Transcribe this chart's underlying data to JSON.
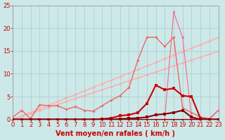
{
  "background_color": "#cce8e8",
  "grid_color": "#aacccc",
  "xlabel": "Vent moyen/en rafales ( km/h )",
  "xlabel_color": "#cc0000",
  "xlabel_fontsize": 7,
  "tick_color": "#cc0000",
  "tick_fontsize": 6,
  "xlim": [
    0,
    23
  ],
  "ylim": [
    0,
    25
  ],
  "yticks": [
    0,
    5,
    10,
    15,
    20,
    25
  ],
  "xticks": [
    0,
    1,
    2,
    3,
    4,
    5,
    6,
    7,
    8,
    9,
    10,
    11,
    12,
    13,
    14,
    15,
    16,
    17,
    18,
    19,
    20,
    21,
    22,
    23
  ],
  "line_diag1": {
    "x": [
      0,
      1,
      2,
      3,
      4,
      5,
      6,
      7,
      8,
      9,
      10,
      11,
      12,
      13,
      14,
      15,
      16,
      17,
      18,
      19,
      20,
      21,
      22,
      23
    ],
    "y": [
      0.0,
      0.65,
      1.3,
      1.95,
      2.6,
      3.25,
      3.9,
      4.55,
      5.2,
      5.85,
      6.5,
      7.15,
      7.8,
      8.45,
      9.1,
      9.75,
      10.4,
      11.05,
      11.7,
      12.35,
      13.0,
      13.65,
      14.3,
      14.95
    ],
    "color": "#ffaaaa",
    "linewidth": 1.0,
    "marker": "D",
    "markersize": 2.0,
    "zorder": 2
  },
  "line_diag2": {
    "x": [
      0,
      1,
      2,
      3,
      4,
      5,
      6,
      7,
      8,
      9,
      10,
      11,
      12,
      13,
      14,
      15,
      16,
      17,
      18,
      19,
      20,
      21,
      22,
      23
    ],
    "y": [
      0.0,
      0.78,
      1.56,
      2.34,
      3.12,
      3.9,
      4.68,
      5.46,
      6.24,
      7.02,
      7.8,
      8.58,
      9.36,
      10.14,
      10.92,
      11.7,
      12.48,
      13.26,
      14.04,
      14.82,
      15.6,
      16.38,
      17.16,
      17.94
    ],
    "color": "#ffaaaa",
    "linewidth": 1.0,
    "marker": "D",
    "markersize": 2.0,
    "zorder": 2
  },
  "line_medpink": {
    "x": [
      0,
      1,
      2,
      3,
      4,
      5,
      6,
      7,
      8,
      9,
      10,
      11,
      12,
      13,
      14,
      15,
      16,
      17,
      18,
      19,
      20,
      21,
      22,
      23
    ],
    "y": [
      0.5,
      2.0,
      0.2,
      3.2,
      3.0,
      3.0,
      2.2,
      2.8,
      2.0,
      1.8,
      3.0,
      4.2,
      5.2,
      7.0,
      13.0,
      18.0,
      18.0,
      16.0,
      18.0,
      2.5,
      1.5,
      0.5,
      0.2,
      2.0
    ],
    "color": "#ee6666",
    "linewidth": 1.0,
    "marker": "D",
    "markersize": 2.0,
    "zorder": 3
  },
  "line_spike": {
    "x": [
      0,
      1,
      2,
      3,
      4,
      5,
      6,
      7,
      8,
      9,
      10,
      11,
      12,
      13,
      14,
      15,
      16,
      17,
      18,
      19,
      20,
      21,
      22,
      23
    ],
    "y": [
      0.0,
      0.0,
      0.0,
      0.0,
      0.0,
      0.0,
      0.0,
      0.0,
      0.0,
      0.0,
      0.0,
      0.0,
      0.0,
      0.0,
      0.0,
      0.0,
      0.0,
      0.0,
      23.5,
      18.0,
      0.2,
      0.0,
      0.0,
      2.0
    ],
    "color": "#ff6688",
    "linewidth": 0.8,
    "marker": "D",
    "markersize": 2.0,
    "zorder": 4
  },
  "line_darkred1": {
    "x": [
      0,
      1,
      2,
      3,
      4,
      5,
      6,
      7,
      8,
      9,
      10,
      11,
      12,
      13,
      14,
      15,
      16,
      17,
      18,
      19,
      20,
      21,
      22,
      23
    ],
    "y": [
      0.0,
      0.0,
      0.0,
      0.0,
      0.0,
      0.0,
      0.0,
      0.0,
      0.0,
      0.0,
      0.1,
      0.3,
      0.8,
      1.0,
      1.5,
      3.5,
      7.5,
      6.5,
      6.8,
      5.2,
      5.0,
      0.2,
      0.0,
      0.0
    ],
    "color": "#cc0000",
    "linewidth": 1.5,
    "marker": "s",
    "markersize": 2.5,
    "zorder": 5
  },
  "line_darkred2": {
    "x": [
      0,
      1,
      2,
      3,
      4,
      5,
      6,
      7,
      8,
      9,
      10,
      11,
      12,
      13,
      14,
      15,
      16,
      17,
      18,
      19,
      20,
      21,
      22,
      23
    ],
    "y": [
      0.0,
      0.0,
      0.0,
      0.0,
      0.0,
      0.0,
      0.0,
      0.0,
      0.0,
      0.0,
      0.0,
      0.0,
      0.1,
      0.2,
      0.3,
      0.5,
      1.0,
      1.2,
      1.5,
      2.0,
      0.5,
      0.0,
      0.0,
      0.0
    ],
    "color": "#880000",
    "linewidth": 1.5,
    "marker": "s",
    "markersize": 2.5,
    "zorder": 6
  },
  "line_zero": {
    "x": [
      0,
      1,
      2,
      3,
      4,
      5,
      6,
      7,
      8,
      9,
      10,
      11,
      12,
      13,
      14,
      15,
      16,
      17,
      18,
      19,
      20,
      21,
      22,
      23
    ],
    "y": [
      0.0,
      0.0,
      0.0,
      0.0,
      0.0,
      0.0,
      0.0,
      0.0,
      0.0,
      0.0,
      0.0,
      0.0,
      0.0,
      0.0,
      0.0,
      0.0,
      0.0,
      0.0,
      0.0,
      0.0,
      0.0,
      0.0,
      0.0,
      0.0
    ],
    "color": "#880000",
    "linewidth": 1.5,
    "marker": "s",
    "markersize": 2.0,
    "zorder": 7
  }
}
